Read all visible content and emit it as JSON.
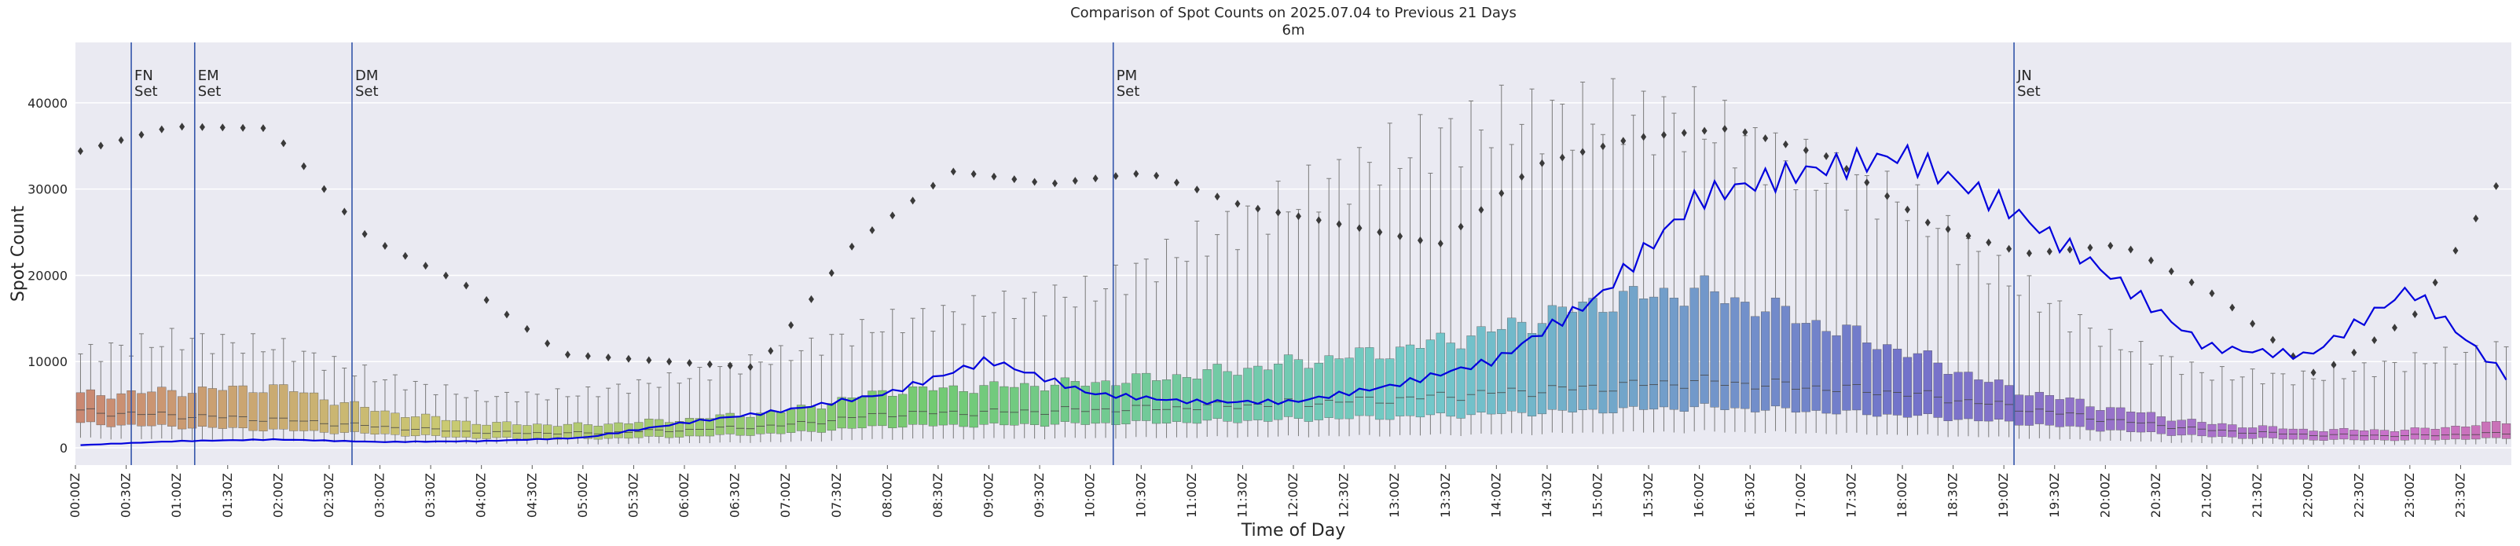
{
  "chart_data": {
    "type": "box",
    "title": "Comparison of Spot Counts on 2025.07.04 to Previous 21 Days",
    "subtitle": "6m",
    "xlabel": "Time of Day",
    "ylabel": "Spot Count",
    "ylim": [
      -2000,
      47000
    ],
    "yticks": [
      0,
      10000,
      20000,
      30000,
      40000
    ],
    "grid": true,
    "x_tick_labels": [
      "00:00Z",
      "00:30Z",
      "01:00Z",
      "01:30Z",
      "02:00Z",
      "02:30Z",
      "03:00Z",
      "03:30Z",
      "04:00Z",
      "04:30Z",
      "05:00Z",
      "05:30Z",
      "06:00Z",
      "06:30Z",
      "07:00Z",
      "07:30Z",
      "08:00Z",
      "08:30Z",
      "09:00Z",
      "09:30Z",
      "10:00Z",
      "10:30Z",
      "11:00Z",
      "11:30Z",
      "12:00Z",
      "12:30Z",
      "13:00Z",
      "13:30Z",
      "14:00Z",
      "14:30Z",
      "15:00Z",
      "15:30Z",
      "16:00Z",
      "16:30Z",
      "17:00Z",
      "17:30Z",
      "18:00Z",
      "18:30Z",
      "19:00Z",
      "19:30Z",
      "20:00Z",
      "20:30Z",
      "21:00Z",
      "21:30Z",
      "22:00Z",
      "22:30Z",
      "23:00Z",
      "23:30Z"
    ],
    "bin_minutes": 6,
    "hours": [
      0,
      1,
      2,
      3,
      4,
      5,
      6,
      7,
      8,
      9,
      10,
      11,
      12,
      13,
      14,
      15,
      16,
      17,
      18,
      19,
      20,
      21,
      22,
      23,
      24
    ],
    "box_median": [
      4500,
      4000,
      3500,
      2600,
      1900,
      1800,
      2200,
      2800,
      4200,
      4400,
      4700,
      5000,
      5500,
      6000,
      6800,
      7500,
      8200,
      7600,
      6800,
      5200,
      3500,
      2200,
      1600,
      1500,
      1800
    ],
    "box_q1": [
      3000,
      2600,
      2200,
      1700,
      1200,
      1100,
      1400,
      1800,
      2700,
      2800,
      3000,
      3200,
      3500,
      3800,
      4200,
      4600,
      5000,
      4600,
      4000,
      3200,
      2200,
      1400,
      1000,
      950,
      1200
    ],
    "box_q3": [
      6500,
      7000,
      7500,
      4500,
      3000,
      2800,
      3500,
      4500,
      7000,
      7500,
      8000,
      9000,
      10500,
      12000,
      14500,
      18000,
      19500,
      16000,
      12000,
      7500,
      5000,
      3000,
      2200,
      2200,
      3200
    ],
    "box_whisker_high": [
      12000,
      14000,
      13000,
      9000,
      6500,
      7000,
      9000,
      12000,
      16000,
      18000,
      20000,
      26000,
      32000,
      38000,
      42000,
      43000,
      42000,
      36000,
      32000,
      22000,
      14000,
      9500,
      9000,
      11000,
      13000
    ],
    "today_line": [
      300,
      800,
      1000,
      700,
      800,
      1200,
      3000,
      4500,
      6500,
      10500,
      6500,
      5500,
      5500,
      7500,
      10500,
      18000,
      30000,
      33000,
      35000,
      29000,
      21000,
      12000,
      11000,
      19000,
      8000
    ],
    "outliers": [
      36000,
      40000,
      40500,
      27000,
      21000,
      12000,
      11000,
      10000,
      25000,
      33000,
      31000,
      32000,
      28000,
      26000,
      24000,
      34000,
      38000,
      40000,
      37000,
      29000,
      25000,
      26000,
      19000,
      9000,
      16000,
      34000
    ],
    "vlines": [
      {
        "label": "FN\nSet",
        "hour": 1.1
      },
      {
        "label": "EM\nSet",
        "hour": 2.35
      },
      {
        "label": "DM\nSet",
        "hour": 5.45
      },
      {
        "label": "PM\nSet",
        "hour": 20.45
      },
      {
        "label": "JN\nSet",
        "hour": 38.2
      }
    ]
  }
}
